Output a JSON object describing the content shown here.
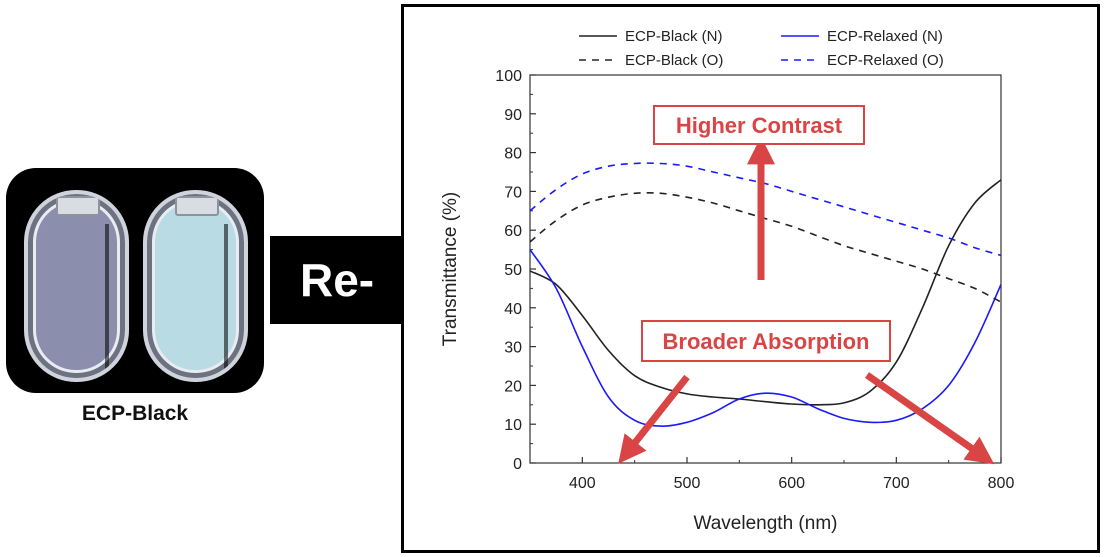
{
  "photo": {
    "label": "ECP-Black"
  },
  "connector": {
    "label": "Re-"
  },
  "annotations": {
    "contrast": "Higher Contrast",
    "absorption": "Broader Absorption"
  },
  "colors": {
    "black_series": "#222222",
    "blue_series": "#1a1aff",
    "annotation": "#d94545"
  },
  "chart_data": {
    "type": "line",
    "title": "",
    "xlabel": "Wavelength (nm)",
    "ylabel": "Transmittance (%)",
    "xlim": [
      350,
      800
    ],
    "ylim": [
      0,
      100
    ],
    "xticks": [
      400,
      500,
      600,
      700,
      800
    ],
    "yticks": [
      0,
      10,
      20,
      30,
      40,
      50,
      60,
      70,
      80,
      90,
      100
    ],
    "grid": false,
    "legend_position": "top",
    "series": [
      {
        "name": "ECP-Black (N)",
        "color": "#222222",
        "dash": "solid",
        "x": [
          350,
          375,
          400,
          425,
          450,
          475,
          500,
          525,
          550,
          575,
          600,
          625,
          650,
          675,
          700,
          725,
          750,
          775,
          800
        ],
        "y": [
          49.5,
          46,
          38,
          29,
          22.5,
          19.5,
          17.8,
          17,
          16.5,
          15.8,
          15.2,
          15,
          15.5,
          18.5,
          26,
          40,
          56,
          67,
          73
        ]
      },
      {
        "name": "ECP-Relaxed (N)",
        "color": "#1a1aff",
        "dash": "solid",
        "x": [
          350,
          375,
          400,
          425,
          450,
          475,
          500,
          525,
          550,
          575,
          600,
          625,
          650,
          675,
          700,
          725,
          750,
          775,
          800
        ],
        "y": [
          55,
          45,
          30,
          17,
          11,
          9.5,
          10.5,
          13,
          16.5,
          18,
          17,
          14,
          11.5,
          10.5,
          11,
          14,
          20,
          31,
          46
        ]
      },
      {
        "name": "ECP-Black (O)",
        "color": "#222222",
        "dash": "dashed",
        "x": [
          350,
          375,
          400,
          425,
          450,
          475,
          500,
          525,
          550,
          575,
          600,
          625,
          650,
          675,
          700,
          725,
          750,
          775,
          800
        ],
        "y": [
          57,
          62.5,
          66.5,
          68.5,
          69.5,
          69.5,
          68.5,
          67,
          65,
          63,
          61,
          58.5,
          56,
          54,
          52,
          50,
          47.5,
          45,
          41.5
        ]
      },
      {
        "name": "ECP-Relaxed (O)",
        "color": "#1a1aff",
        "dash": "dashed",
        "x": [
          350,
          375,
          400,
          425,
          450,
          475,
          500,
          525,
          550,
          575,
          600,
          625,
          650,
          675,
          700,
          725,
          750,
          775,
          800
        ],
        "y": [
          65,
          70.5,
          74.5,
          76.5,
          77.2,
          77.2,
          76.5,
          75,
          73.5,
          72,
          70,
          68,
          66,
          64,
          62,
          60,
          58,
          55.5,
          53.5
        ]
      }
    ]
  }
}
